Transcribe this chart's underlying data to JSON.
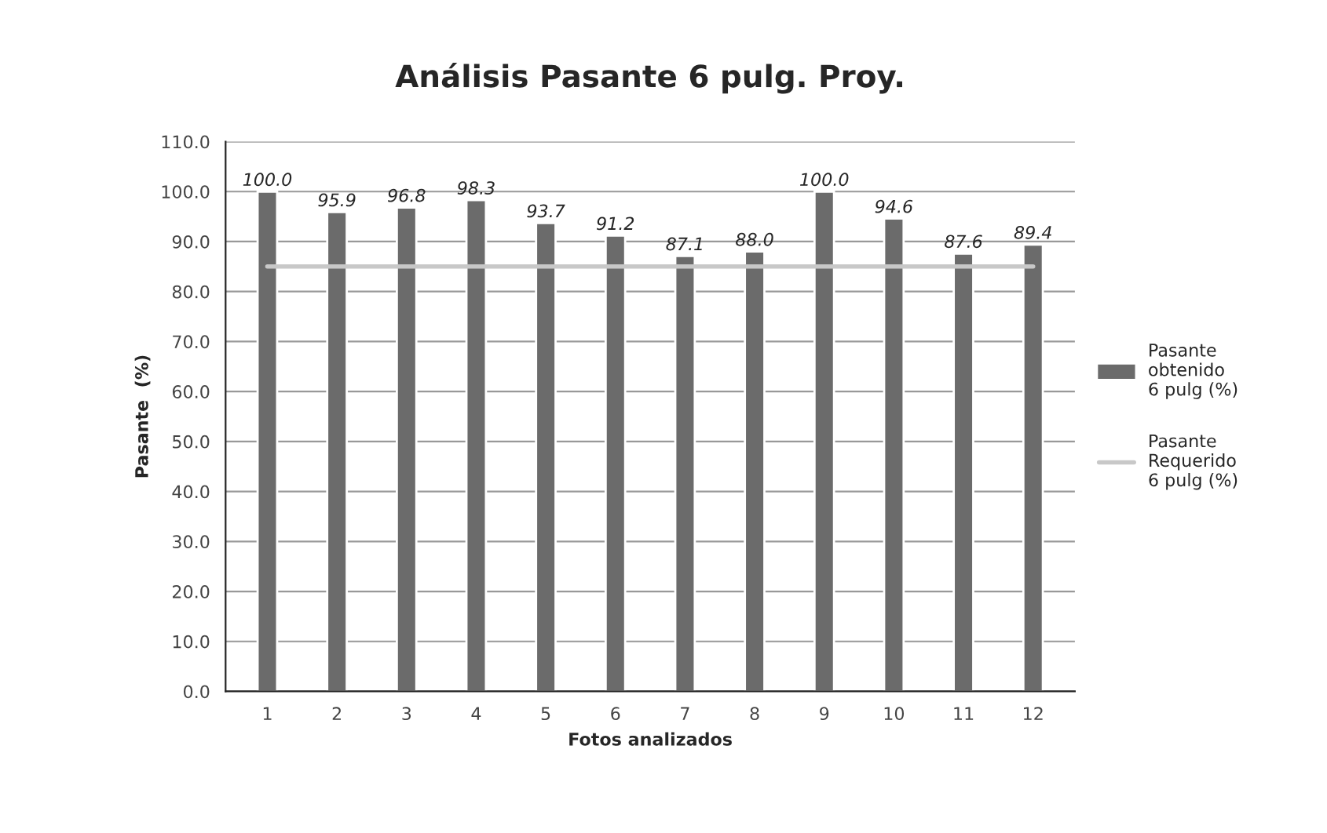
{
  "chart_data": {
    "type": "bar",
    "title": "Análisis Pasante 6 pulg. Proy.",
    "xlabel": "Fotos analizados",
    "ylabel": "Pasante  (%)",
    "categories": [
      "1",
      "2",
      "3",
      "4",
      "5",
      "6",
      "7",
      "8",
      "9",
      "10",
      "11",
      "12"
    ],
    "series": [
      {
        "name": "Pasante obtenido 6 pulg (%)",
        "color": "#6b6b6b",
        "values": [
          100.0,
          95.9,
          96.8,
          98.3,
          93.7,
          91.2,
          87.1,
          88.0,
          100.0,
          94.6,
          87.6,
          89.4
        ],
        "value_labels": [
          "100.0",
          "95.9",
          "96.8",
          "98.3",
          "93.7",
          "91.2",
          "87.1",
          "88.0",
          "100.0",
          "94.6",
          "87.6",
          "89.4"
        ]
      },
      {
        "name": "Pasante Requerido 6 pulg (%)",
        "type": "line",
        "color": "#c8c8c8",
        "values": [
          85,
          85,
          85,
          85,
          85,
          85,
          85,
          85,
          85,
          85,
          85,
          85
        ]
      }
    ],
    "ylim": [
      0,
      110
    ],
    "yticks": [
      {
        "value": 0,
        "label": "0.0"
      },
      {
        "value": 10,
        "label": "10.0"
      },
      {
        "value": 20,
        "label": "20.0"
      },
      {
        "value": 30,
        "label": "30.0"
      },
      {
        "value": 40,
        "label": "40.0"
      },
      {
        "value": 50,
        "label": "50.0"
      },
      {
        "value": 60,
        "label": "60.0"
      },
      {
        "value": 70,
        "label": "70.0"
      },
      {
        "value": 80,
        "label": "80.0"
      },
      {
        "value": 90,
        "label": "90.0"
      },
      {
        "value": 100,
        "label": "100.0"
      },
      {
        "value": 110,
        "label": "110.0"
      }
    ],
    "grid": "y",
    "legend": "right",
    "marker": "none",
    "line_style": "solid"
  }
}
